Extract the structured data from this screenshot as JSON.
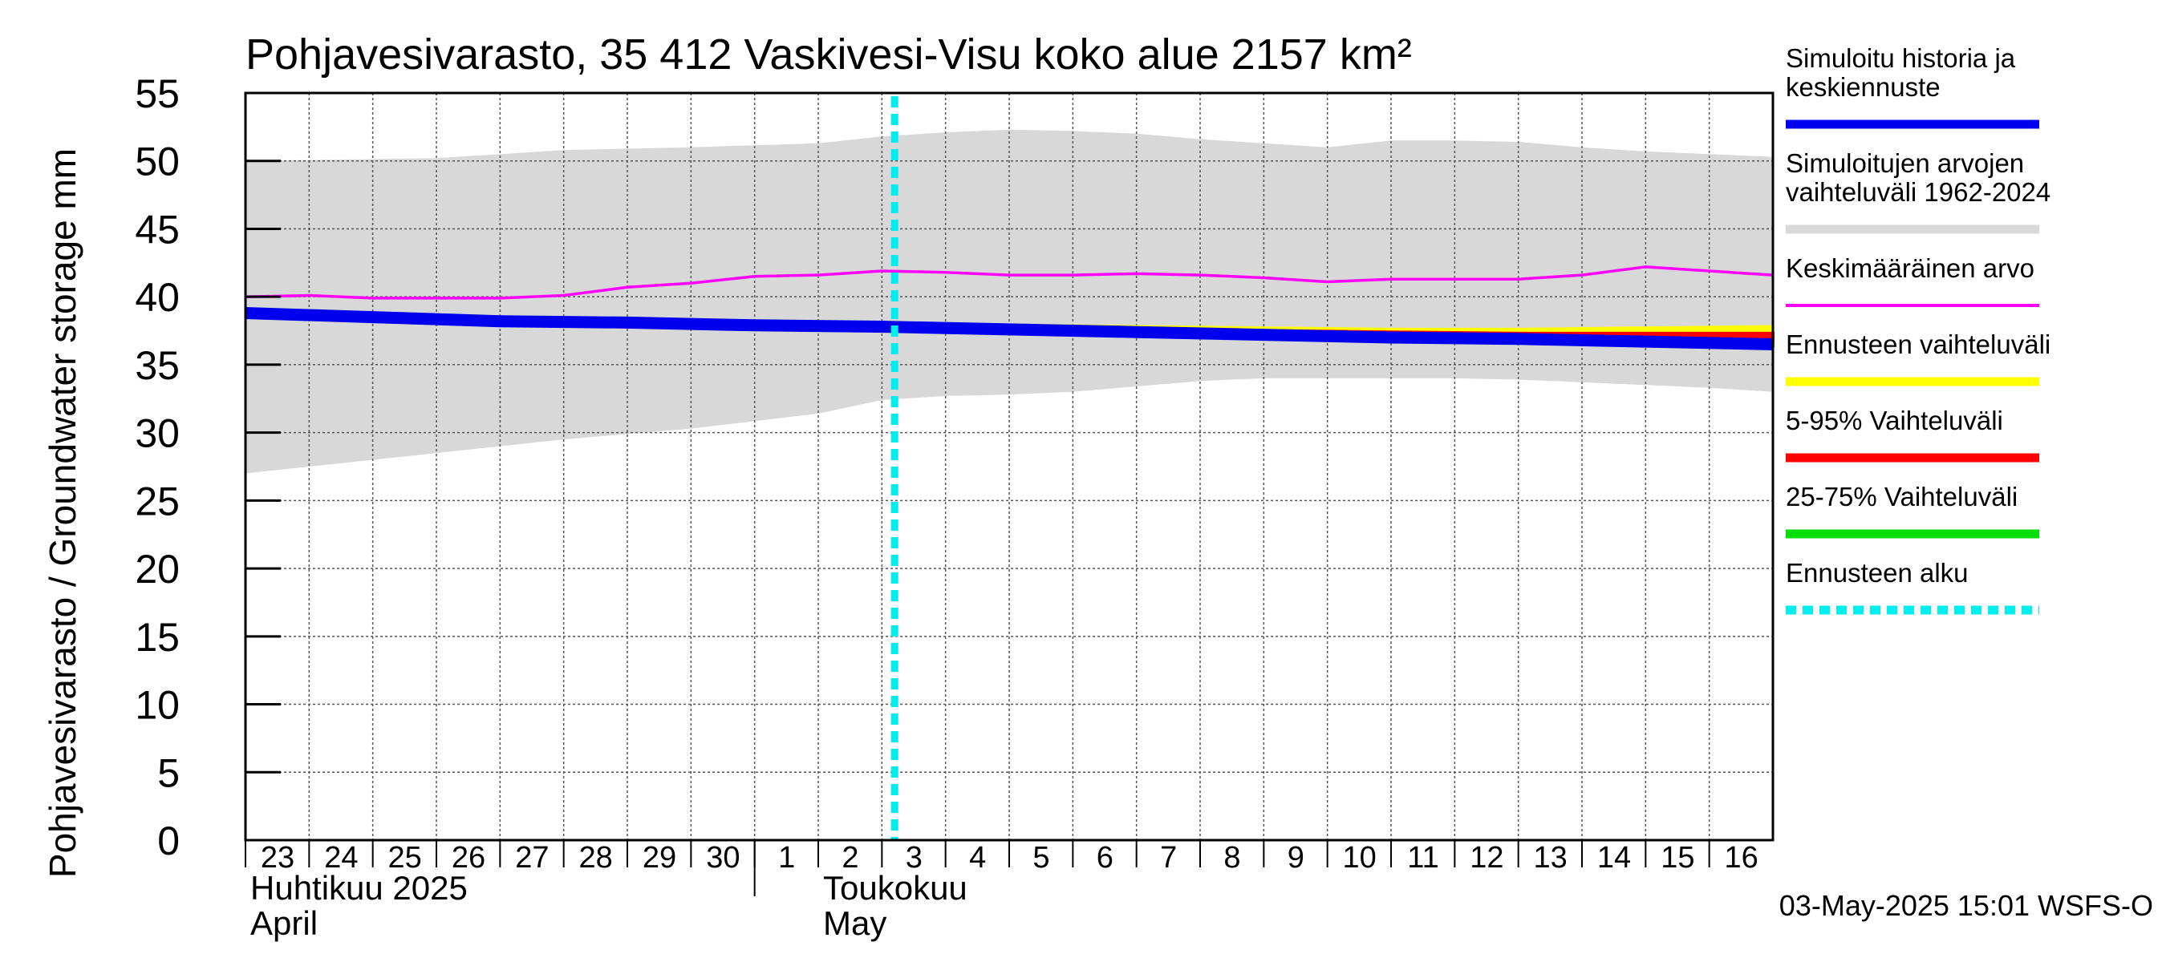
{
  "chart_data": {
    "type": "line",
    "title": "Pohjavesivarasto, 35 412 Vaskivesi-Visu koko alue 2157 km²",
    "ylabel": "Pohjavesivarasto / Groundwater storage   mm",
    "ylim": [
      0,
      55
    ],
    "yticks": [
      0,
      5,
      10,
      15,
      20,
      25,
      30,
      35,
      40,
      45,
      50,
      55
    ],
    "xlim": [
      0,
      24
    ],
    "grid": true,
    "day_labels": [
      "23",
      "24",
      "25",
      "26",
      "27",
      "28",
      "29",
      "30",
      "1",
      "2",
      "3",
      "4",
      "5",
      "6",
      "7",
      "8",
      "9",
      "10",
      "11",
      "12",
      "13",
      "14",
      "15",
      "16"
    ],
    "month_labels": [
      {
        "line1": "Huhtikuu  2025",
        "line2": "April",
        "x": 0
      },
      {
        "line1": "Toukokuu",
        "line2": "May",
        "x": 9
      }
    ],
    "month_separator_x": 8,
    "forecast_start_x": 10.2,
    "series": [
      {
        "name": "Simuloitujen arvojen vaihteluväli 1962-2024",
        "kind": "band",
        "color": "#d8d8d8",
        "x": [
          0,
          3,
          5,
          7,
          9,
          10,
          11,
          12,
          13,
          14,
          15,
          16,
          17,
          18,
          19,
          20,
          21,
          22,
          23,
          24
        ],
        "upper": [
          50.0,
          50.2,
          50.8,
          51.0,
          51.3,
          51.8,
          52.1,
          52.3,
          52.2,
          52.0,
          51.6,
          51.3,
          51.0,
          51.5,
          51.5,
          51.4,
          51.0,
          50.7,
          50.5,
          50.3
        ],
        "lower": [
          27.0,
          28.5,
          29.5,
          30.3,
          31.4,
          32.4,
          32.7,
          32.8,
          33.0,
          33.4,
          33.8,
          34.0,
          34.0,
          34.0,
          34.0,
          33.9,
          33.7,
          33.5,
          33.3,
          33.0
        ]
      },
      {
        "name": "Keskimääräinen arvo",
        "kind": "line",
        "color": "#ff00ff",
        "x": [
          0,
          1,
          2,
          3,
          4,
          5,
          6,
          7,
          8,
          9,
          10,
          11,
          12,
          13,
          14,
          15,
          16,
          17,
          18,
          19,
          20,
          21,
          22,
          23,
          24
        ],
        "values": [
          40.0,
          40.1,
          39.9,
          39.9,
          39.9,
          40.1,
          40.7,
          41.0,
          41.5,
          41.6,
          41.9,
          41.8,
          41.6,
          41.6,
          41.7,
          41.6,
          41.4,
          41.1,
          41.3,
          41.3,
          41.3,
          41.6,
          42.2,
          41.9,
          41.6
        ]
      },
      {
        "name": "Ennusteen vaihteluväli",
        "kind": "band",
        "color": "#ffff00",
        "x": [
          10.2,
          12,
          14,
          16,
          18,
          20,
          22,
          24
        ],
        "upper": [
          38.0,
          37.9,
          37.8,
          37.7,
          37.6,
          37.6,
          37.7,
          37.8
        ],
        "lower": [
          37.8,
          37.6,
          37.4,
          37.2,
          37.0,
          36.8,
          36.6,
          36.4
        ]
      },
      {
        "name": "5-95% Vaihteluväli",
        "kind": "band",
        "color": "#ff0000",
        "x": [
          10.2,
          12,
          14,
          16,
          18,
          20,
          22,
          24
        ],
        "upper": [
          37.9,
          37.8,
          37.7,
          37.5,
          37.4,
          37.3,
          37.3,
          37.3
        ],
        "lower": [
          37.8,
          37.6,
          37.4,
          37.2,
          37.0,
          36.8,
          36.6,
          36.4
        ]
      },
      {
        "name": "25-75% Vaihteluväli",
        "kind": "band",
        "color": "#00dd00",
        "x": [
          10.2,
          12,
          14,
          16,
          18,
          20,
          22,
          24
        ],
        "upper": [
          37.85,
          37.65,
          37.45,
          37.25,
          37.05,
          36.85,
          36.7,
          36.55
        ],
        "lower": [
          37.8,
          37.6,
          37.4,
          37.2,
          37.0,
          36.8,
          36.6,
          36.4
        ]
      },
      {
        "name": "Simuloitu historia ja keskiennuste",
        "kind": "line",
        "color": "#0000ee",
        "x": [
          0,
          2,
          4,
          6,
          8,
          10,
          12,
          14,
          16,
          18,
          20,
          22,
          24
        ],
        "values": [
          38.8,
          38.5,
          38.2,
          38.1,
          37.9,
          37.8,
          37.6,
          37.4,
          37.2,
          37.0,
          36.9,
          36.7,
          36.5
        ]
      }
    ],
    "legend": [
      {
        "label_lines": [
          "Simuloitu historia ja",
          "keskiennuste"
        ],
        "color": "#0000ee",
        "style": "solid"
      },
      {
        "label_lines": [
          "Simuloitujen arvojen",
          "vaihteluväli 1962-2024"
        ],
        "color": "#d8d8d8",
        "style": "solid"
      },
      {
        "label_lines": [
          "Keskimääräinen arvo"
        ],
        "color": "#ff00ff",
        "style": "thin"
      },
      {
        "label_lines": [
          "Ennusteen vaihteluväli"
        ],
        "color": "#ffff00",
        "style": "solid"
      },
      {
        "label_lines": [
          "5-95% Vaihteluväli"
        ],
        "color": "#ff0000",
        "style": "solid"
      },
      {
        "label_lines": [
          "25-75% Vaihteluväli"
        ],
        "color": "#00dd00",
        "style": "solid"
      },
      {
        "label_lines": [
          "Ennusteen alku"
        ],
        "color": "#00eeee",
        "style": "dashed"
      }
    ],
    "forecast_line_color": "#00eeee",
    "footer": "03-May-2025 15:01 WSFS-O"
  }
}
